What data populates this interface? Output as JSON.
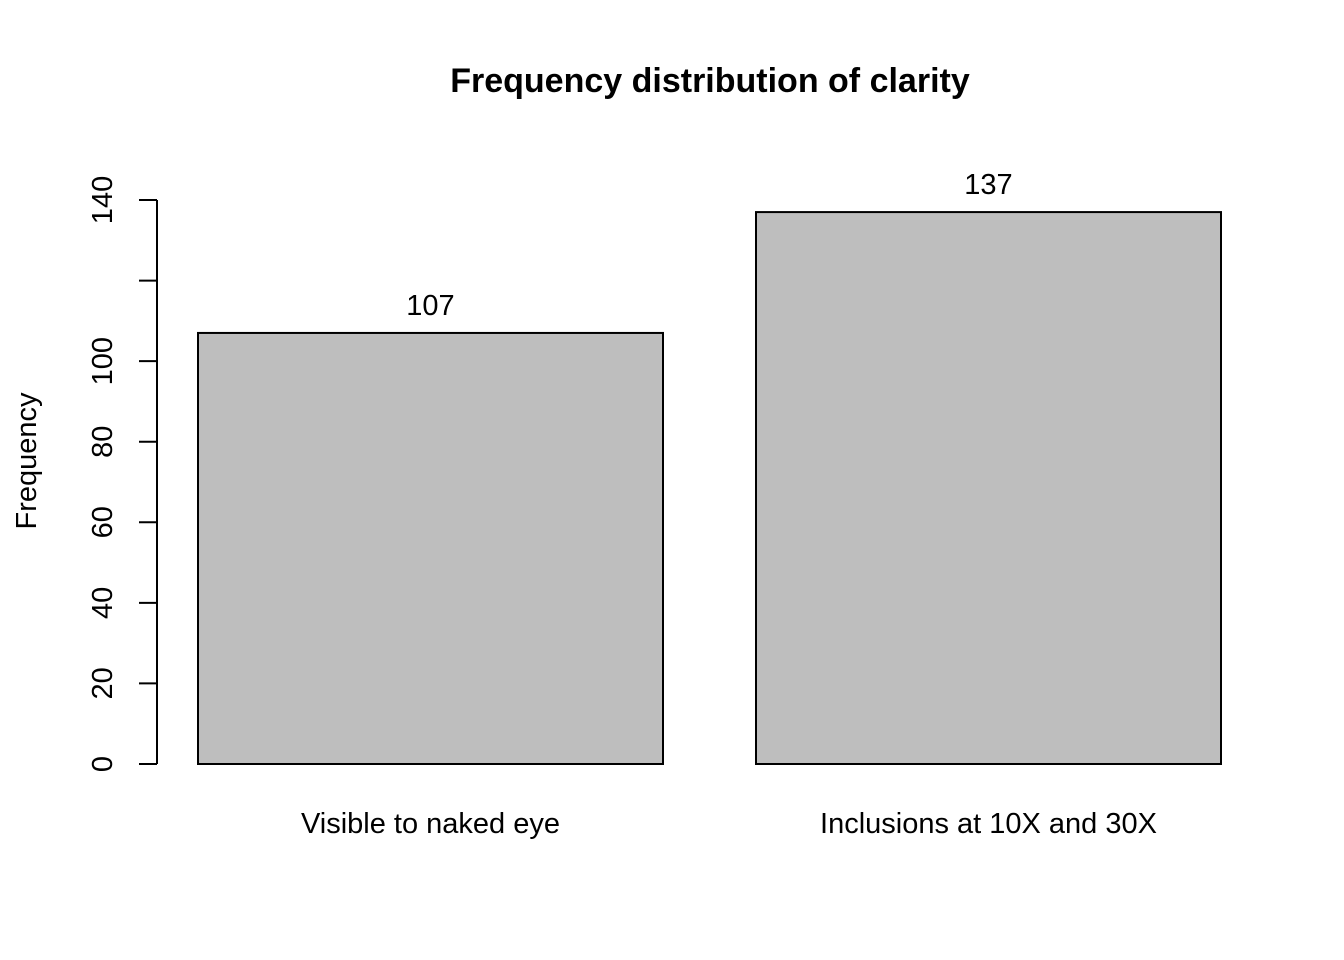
{
  "chart_data": {
    "type": "bar",
    "title": "Frequency distribution of clarity",
    "xlabel": "",
    "ylabel": "Frequency",
    "categories": [
      "Visible to naked eye",
      "Inclusions at 10X and 30X"
    ],
    "values": [
      107,
      137
    ],
    "value_labels": [
      "107",
      "137"
    ],
    "ylim": [
      0,
      140
    ],
    "yticks": [
      0,
      20,
      40,
      60,
      80,
      100,
      120,
      140
    ],
    "ytick_labels": [
      "0",
      "20",
      "40",
      "60",
      "80",
      "100",
      "",
      "140"
    ],
    "bar_color": "#bebebe",
    "grid": false,
    "legend": "none"
  }
}
